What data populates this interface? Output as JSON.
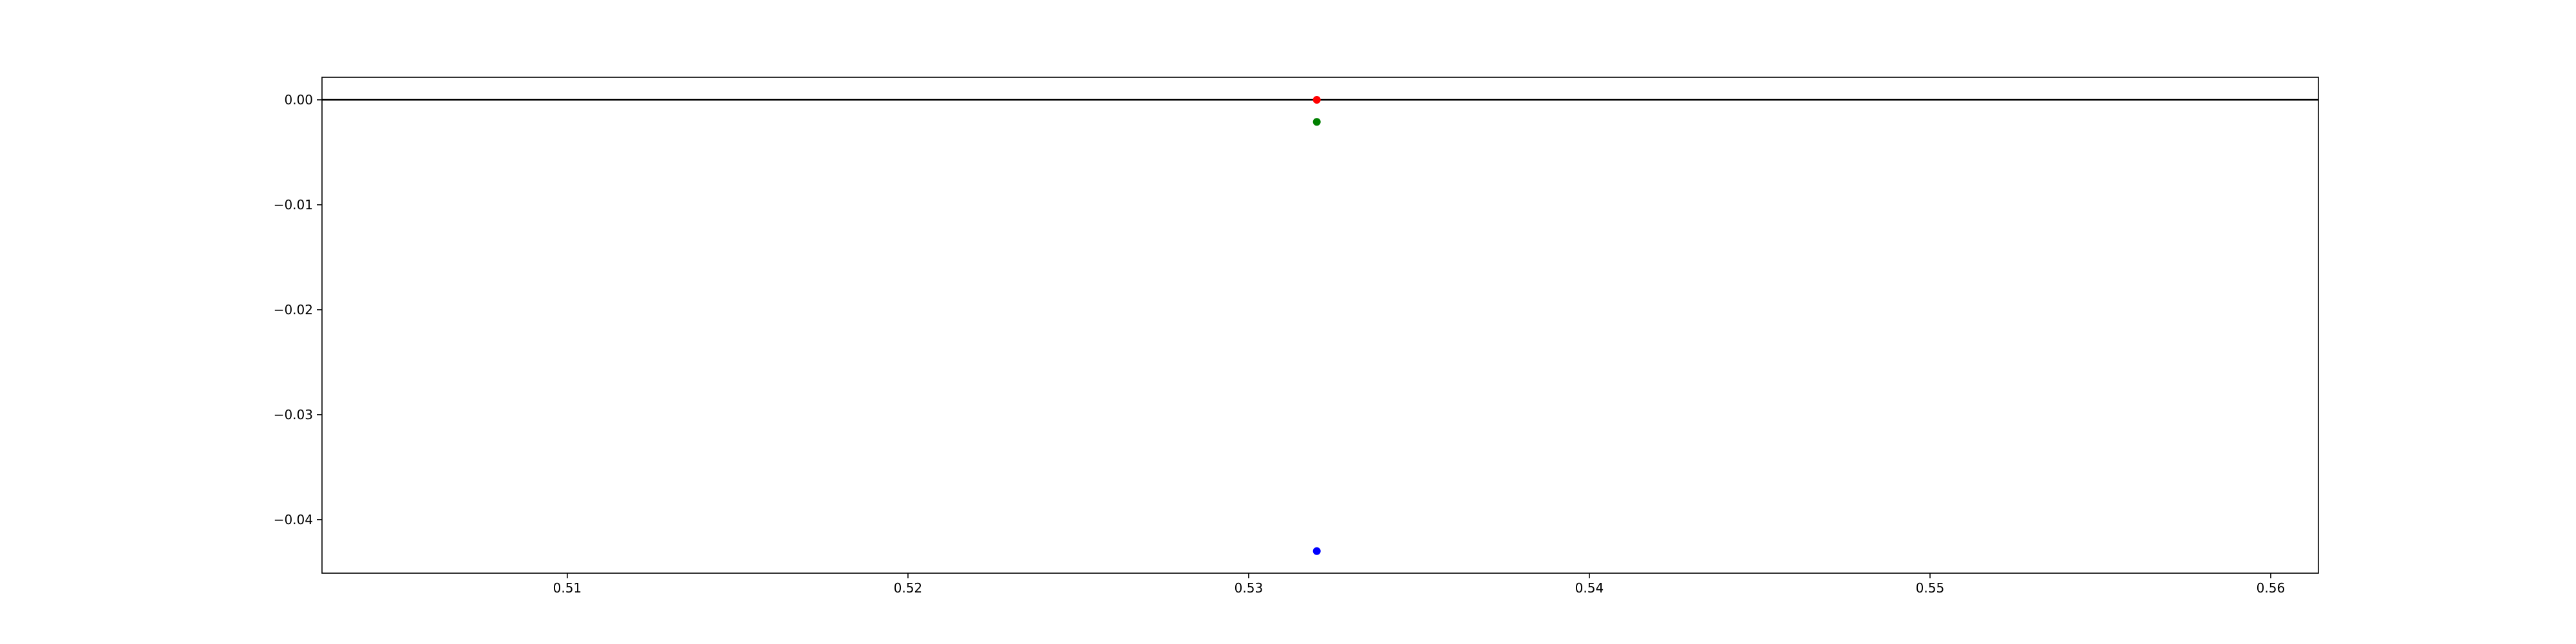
{
  "chart_data": {
    "type": "scatter",
    "title": "",
    "xlabel": "",
    "ylabel": "",
    "xlim": [
      0.5028,
      0.5614
    ],
    "ylim": [
      -0.0451,
      0.00215
    ],
    "grid": false,
    "x_ticks": [
      {
        "value": 0.51,
        "label": "0.51"
      },
      {
        "value": 0.52,
        "label": "0.52"
      },
      {
        "value": 0.53,
        "label": "0.53"
      },
      {
        "value": 0.54,
        "label": "0.54"
      },
      {
        "value": 0.55,
        "label": "0.55"
      },
      {
        "value": 0.56,
        "label": "0.56"
      }
    ],
    "y_ticks": [
      {
        "value": 0.0,
        "label": "0.00"
      },
      {
        "value": -0.01,
        "label": "−0.01"
      },
      {
        "value": -0.02,
        "label": "−0.02"
      },
      {
        "value": -0.03,
        "label": "−0.03"
      },
      {
        "value": -0.04,
        "label": "−0.04"
      }
    ],
    "hlines": [
      {
        "y": 0.0,
        "color": "#000000"
      }
    ],
    "points": [
      {
        "x": 0.532,
        "y": 0.0,
        "color": "#ff0000"
      },
      {
        "x": 0.532,
        "y": -0.0021,
        "color": "#008000"
      },
      {
        "x": 0.532,
        "y": -0.043,
        "color": "#0000ff"
      }
    ]
  }
}
